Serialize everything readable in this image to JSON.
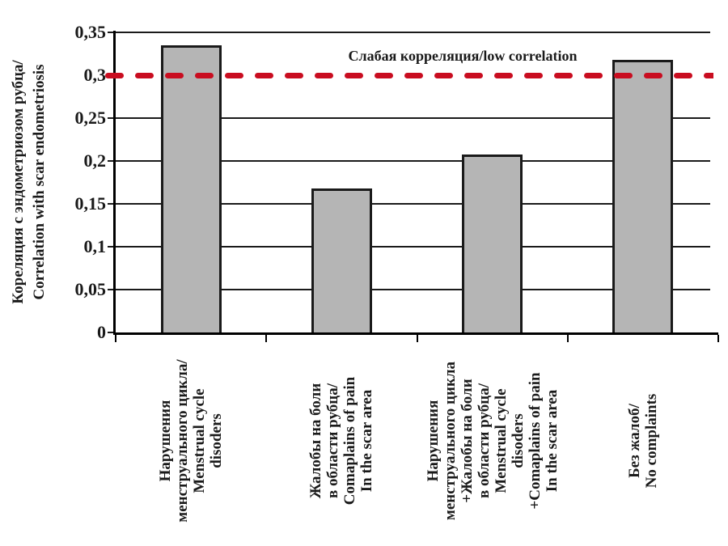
{
  "chart_data": {
    "type": "bar",
    "title": "",
    "ylabel_lines": [
      "Кореляция с эндометриозом рубца/",
      "Correlation with scar endometriosis"
    ],
    "ylim": [
      0,
      0.35
    ],
    "grid": true,
    "legend_position": "none",
    "y_ticks": [
      {
        "label": "0,35",
        "value": 0.35
      },
      {
        "label": "0,3",
        "value": 0.3
      },
      {
        "label": "0,25",
        "value": 0.25
      },
      {
        "label": "0,2",
        "value": 0.2
      },
      {
        "label": "0,15",
        "value": 0.15
      },
      {
        "label": "0,1",
        "value": 0.1
      },
      {
        "label": "0,05",
        "value": 0.05
      },
      {
        "label": "0",
        "value": 0
      }
    ],
    "categories": [
      {
        "lines": [
          "Нарушения",
          "менструального цикла/",
          "Menstrual cycle",
          "disoders"
        ]
      },
      {
        "lines": [
          "Жалобы на боли",
          "в области рубца/",
          "Comaplains of pain",
          "In the scar area"
        ]
      },
      {
        "lines": [
          "Нарушения",
          "менструального цикла",
          "+Жалобы на боли",
          "в области рубца/",
          "Menstrual cycle",
          "disoders",
          "+Comaplains of pain",
          "In the scar area"
        ]
      },
      {
        "lines": [
          "Без жалоб/",
          "No complaints"
        ]
      }
    ],
    "values": [
      0.335,
      0.168,
      0.208,
      0.318
    ],
    "reference_line": {
      "value": 0.3,
      "label": "Слабая корреляция/low correlation",
      "style": "dashed",
      "color": "#c90d20"
    },
    "colors": {
      "bar_fill": "#b5b5b5",
      "bar_border": "#1a1a1a",
      "grid": "#1a1a1a",
      "axis": "#000000"
    }
  }
}
